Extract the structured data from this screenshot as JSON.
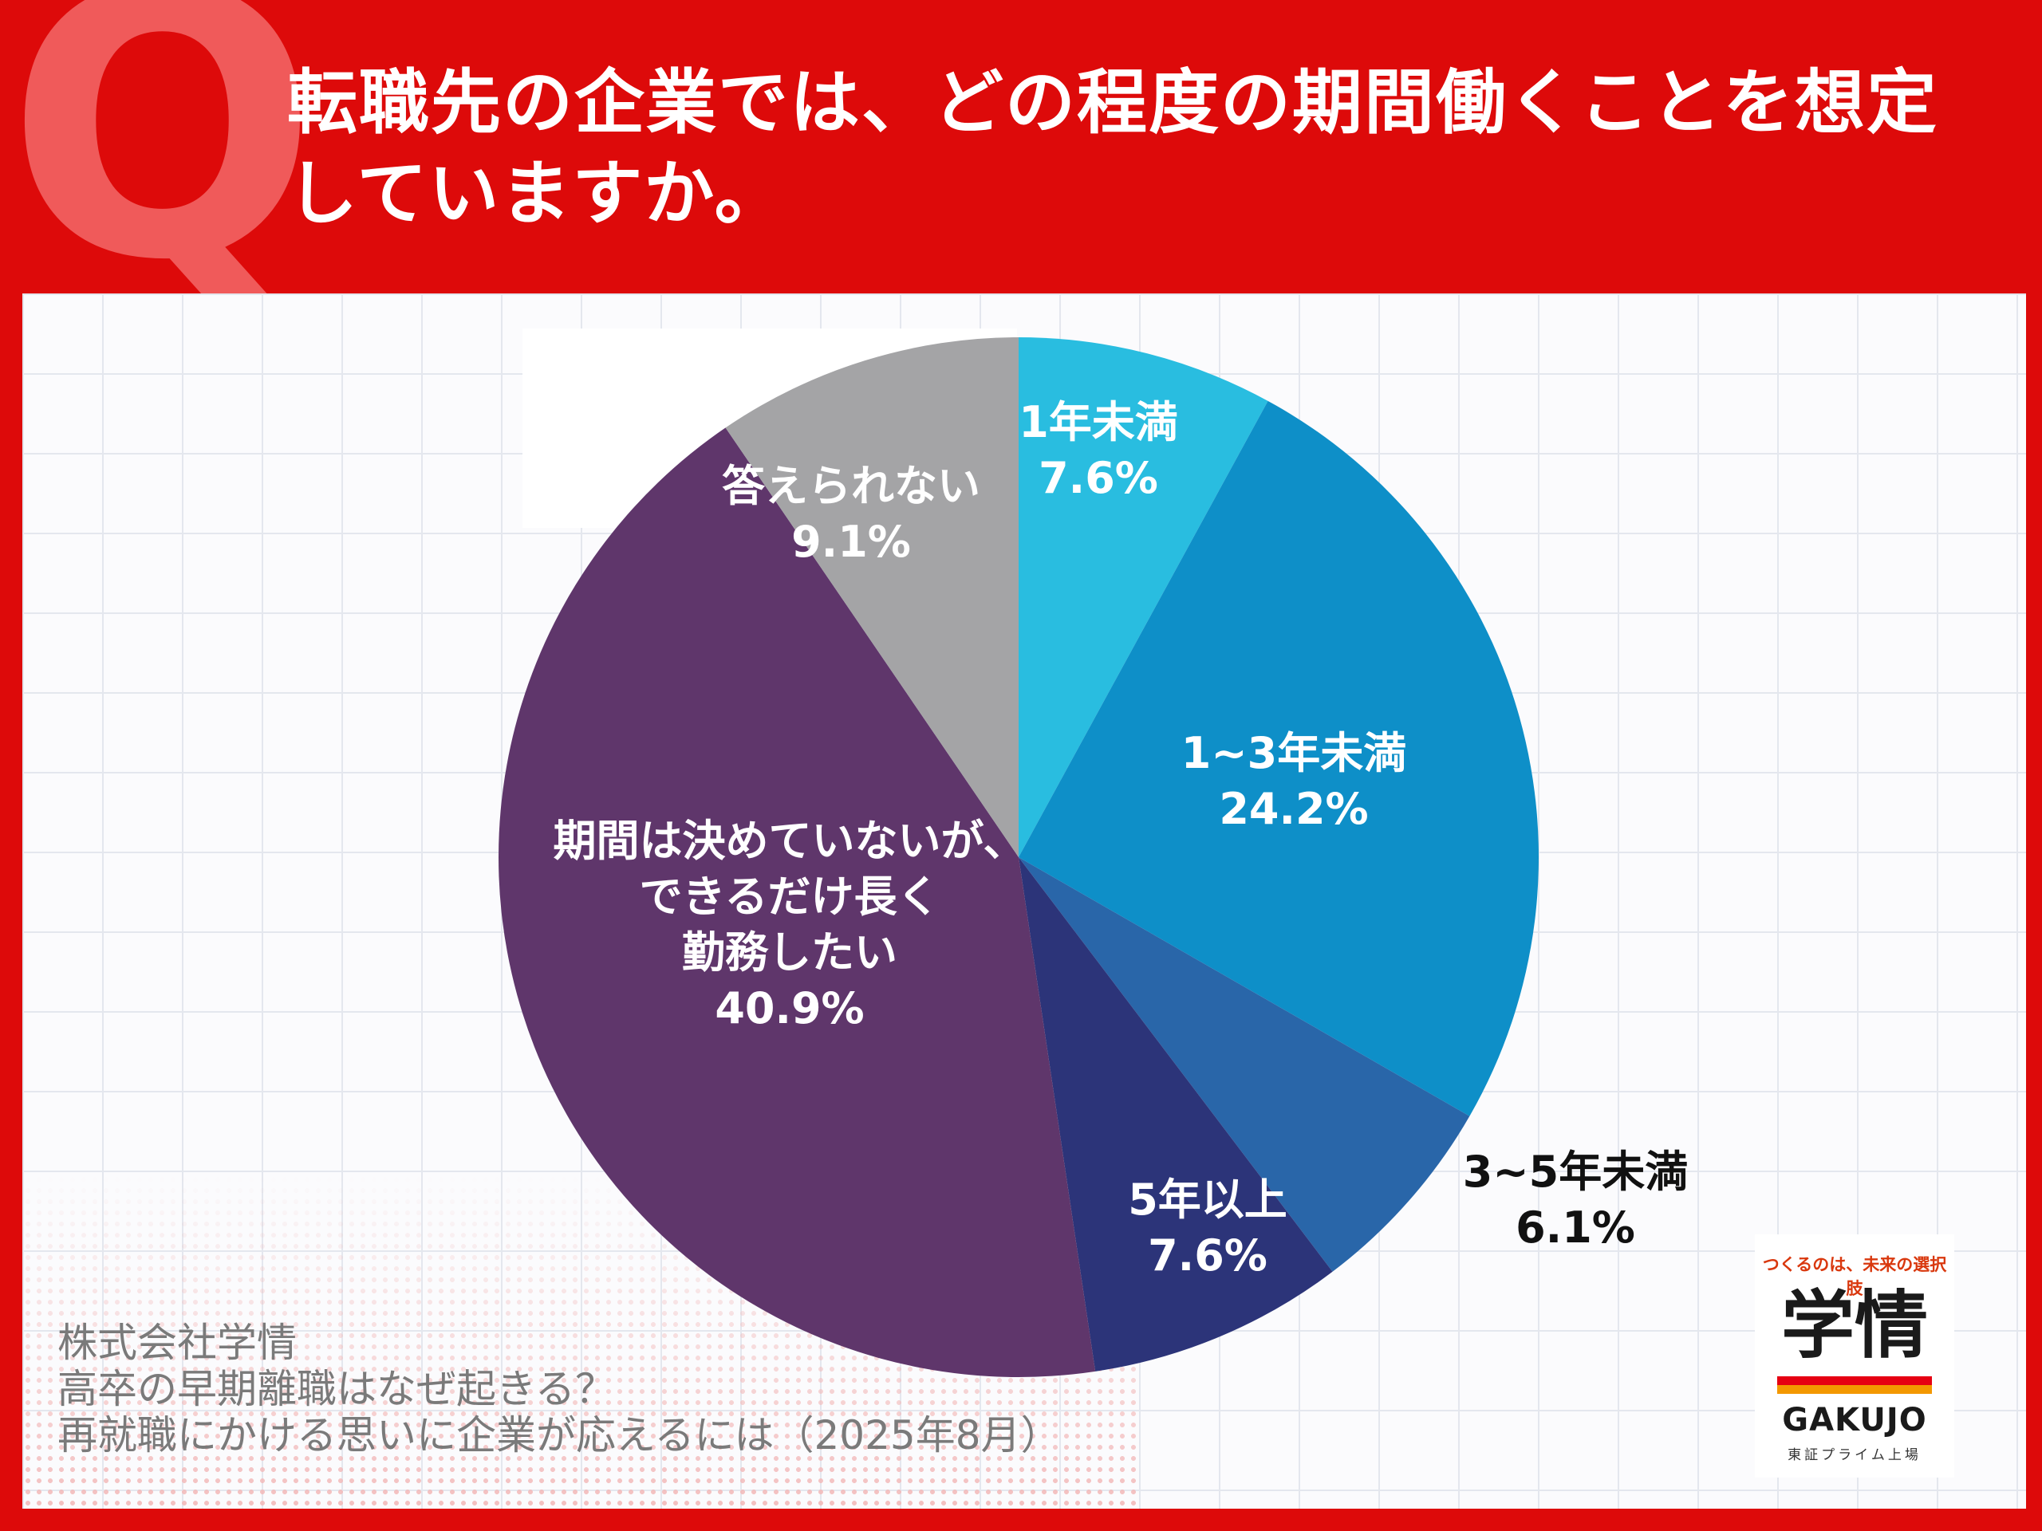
{
  "question": {
    "mark": "Q",
    "title": "転職先の企業では、どの程度の期間働くことを想定\nしていますか。"
  },
  "chart_data": {
    "type": "pie",
    "start": "12 o'clock, clockwise",
    "slices": [
      {
        "label": "1年未満",
        "value": 7.6,
        "display": "7.6%",
        "color": "#29bde0",
        "text_color": "#ffffff"
      },
      {
        "label": "1~3年未満",
        "value": 24.2,
        "display": "24.2%",
        "color": "#0e8fc8",
        "text_color": "#ffffff"
      },
      {
        "label": "3~5年未満",
        "value": 6.1,
        "display": "6.1%",
        "color": "#2966a9",
        "text_color": "#111111"
      },
      {
        "label": "5年以上",
        "value": 7.6,
        "display": "7.6%",
        "color": "#2c3479",
        "text_color": "#ffffff"
      },
      {
        "label": "期間は決めていないが、\nできるだけ長く\n勤務したい",
        "value": 40.9,
        "display": "40.9%",
        "color": "#5f366b",
        "text_color": "#ffffff"
      },
      {
        "label": "答えられない",
        "value": 9.1,
        "display": "9.1%",
        "color": "#a4a4a6",
        "text_color": "#ffffff"
      }
    ]
  },
  "source": "株式会社学情\n高卒の早期離職はなぜ起きる？\n再就職にかける思いに企業が応えるには（2025年8月）",
  "logo": {
    "tagline": "つくるのは、未来の選択肢",
    "main": "学情",
    "name": "GAKUJO",
    "sub": "東証プライム上場"
  }
}
